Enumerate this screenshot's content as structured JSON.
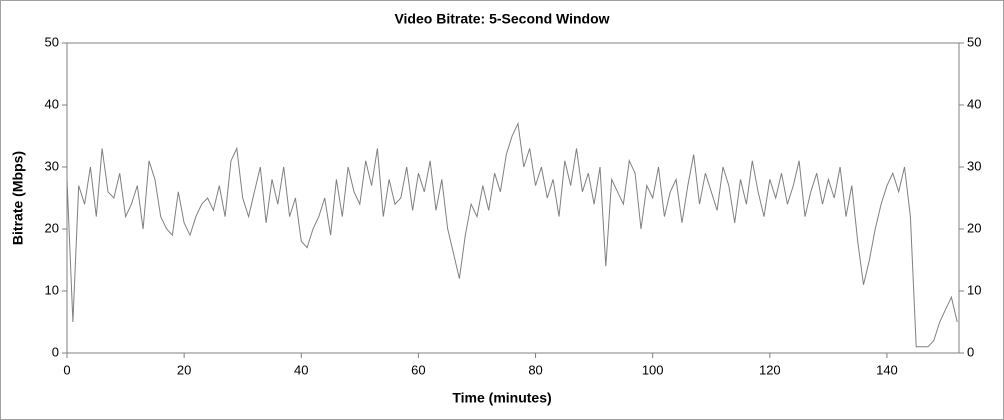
{
  "chart_data": {
    "type": "line",
    "title": "Video Bitrate: 5-Second Window",
    "x_label": "Time (minutes)",
    "y_label": "Bitrate (Mbps)",
    "xlim": [
      0,
      152.3
    ],
    "xticks": [
      0,
      20,
      40,
      60,
      80,
      100,
      120,
      140
    ],
    "ylim": [
      0,
      50
    ],
    "yticks": [
      0,
      10,
      20,
      30,
      40,
      50
    ],
    "x": [
      0,
      1,
      2,
      3,
      4,
      5,
      6,
      7,
      8,
      9,
      10,
      11,
      12,
      13,
      14,
      15,
      16,
      17,
      18,
      19,
      20,
      21,
      22,
      23,
      24,
      25,
      26,
      27,
      28,
      29,
      30,
      31,
      32,
      33,
      34,
      35,
      36,
      37,
      38,
      39,
      40,
      41,
      42,
      43,
      44,
      45,
      46,
      47,
      48,
      49,
      50,
      51,
      52,
      53,
      54,
      55,
      56,
      57,
      58,
      59,
      60,
      61,
      62,
      63,
      64,
      65,
      66,
      67,
      68,
      69,
      70,
      71,
      72,
      73,
      74,
      75,
      76,
      77,
      78,
      79,
      80,
      81,
      82,
      83,
      84,
      85,
      86,
      87,
      88,
      89,
      90,
      91,
      92,
      93,
      94,
      95,
      96,
      97,
      98,
      99,
      100,
      101,
      102,
      103,
      104,
      105,
      106,
      107,
      108,
      109,
      110,
      111,
      112,
      113,
      114,
      115,
      116,
      117,
      118,
      119,
      120,
      121,
      122,
      123,
      124,
      125,
      126,
      127,
      128,
      129,
      130,
      131,
      132,
      133,
      134,
      135,
      136,
      137,
      138,
      139,
      140,
      141,
      142,
      143,
      144,
      145,
      146,
      147,
      148,
      149,
      150,
      151,
      152
    ],
    "series": [
      {
        "name": "Video Bitrate",
        "color": "#808080",
        "values": [
          28,
          5,
          27,
          24,
          30,
          22,
          33,
          26,
          25,
          29,
          22,
          24,
          27,
          20,
          31,
          28,
          22,
          20,
          19,
          26,
          21,
          19,
          22,
          24,
          25,
          23,
          27,
          22,
          31,
          33,
          25,
          22,
          26,
          30,
          21,
          28,
          24,
          30,
          22,
          25,
          18,
          17,
          20,
          22,
          25,
          19,
          28,
          22,
          30,
          26,
          24,
          31,
          27,
          33,
          22,
          28,
          24,
          25,
          30,
          23,
          29,
          26,
          31,
          23,
          28,
          20,
          16,
          12,
          19,
          24,
          22,
          27,
          23,
          29,
          26,
          32,
          35,
          37,
          30,
          33,
          27,
          30,
          25,
          28,
          22,
          31,
          27,
          33,
          26,
          29,
          24,
          30,
          14,
          28,
          26,
          24,
          31,
          29,
          20,
          27,
          25,
          30,
          22,
          26,
          28,
          21,
          27,
          32,
          24,
          29,
          26,
          23,
          30,
          27,
          21,
          28,
          24,
          31,
          26,
          22,
          28,
          25,
          29,
          24,
          27,
          31,
          22,
          26,
          29,
          24,
          28,
          25,
          30,
          22,
          27,
          18,
          11,
          15,
          20,
          24,
          27,
          29,
          26,
          30,
          22,
          1,
          1,
          1,
          2,
          5,
          7,
          9,
          5
        ]
      }
    ]
  }
}
